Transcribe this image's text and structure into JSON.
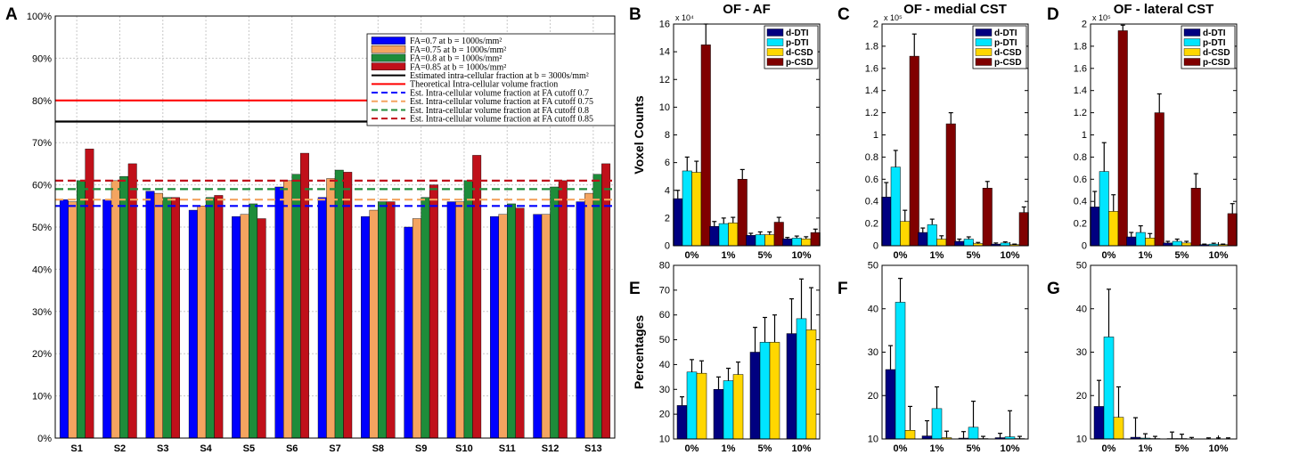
{
  "panels": {
    "A": "A",
    "B": "B",
    "C": "C",
    "D": "D",
    "E": "E",
    "F": "F",
    "G": "G"
  },
  "colors": {
    "fa07": "#0000FF",
    "fa075": "#F4A460",
    "fa08": "#1E8C3A",
    "fa085": "#C0101A",
    "estimated": "#000000",
    "theoretical": "#FF0000",
    "dDTI": "#000080",
    "pDTI": "#00E5FF",
    "dCSD": "#FFD700",
    "pCSD": "#800000"
  },
  "chart_data": [
    {
      "panel": "A",
      "type": "bar",
      "categories": [
        "S1",
        "S2",
        "S3",
        "S4",
        "S5",
        "S6",
        "S7",
        "S8",
        "S9",
        "S10",
        "S11",
        "S12",
        "S13"
      ],
      "yticks": [
        "0%",
        "10%",
        "20%",
        "30%",
        "40%",
        "50%",
        "60%",
        "70%",
        "80%",
        "90%",
        "100%"
      ],
      "ylim": [
        0,
        100
      ],
      "grid": true,
      "series": [
        {
          "name": "FA=0.7 at b = 1000s/mm²",
          "color": "fa07",
          "values": [
            56.5,
            56.5,
            58.5,
            54,
            52.5,
            59.5,
            57,
            52.5,
            50,
            56,
            52.5,
            53,
            56
          ]
        },
        {
          "name": "FA=0.75 at b = 1000s/mm²",
          "color": "fa075",
          "values": [
            56,
            61,
            58,
            55,
            53,
            61,
            61.5,
            54,
            52,
            56,
            53,
            53,
            58
          ]
        },
        {
          "name": "FA=0.8 at b = 1000s/mm²",
          "color": "fa08",
          "values": [
            61,
            62,
            57,
            57,
            55.5,
            62.5,
            63.5,
            56,
            57,
            61,
            55.5,
            59.5,
            62.5
          ]
        },
        {
          "name": "FA=0.85 at b = 1000s/mm²",
          "color": "fa085",
          "values": [
            68.5,
            65,
            57,
            57.5,
            52,
            67.5,
            63,
            56,
            60,
            67,
            54.5,
            61,
            65
          ]
        }
      ],
      "hlines": [
        {
          "name": "Estimated intra-cellular fraction at b = 3000s/mm²",
          "value": 75,
          "color": "estimated",
          "dashed": false
        },
        {
          "name": "Theoretical Intra-cellular volume fraction",
          "value": 80,
          "color": "theoretical",
          "dashed": false
        },
        {
          "name": "Est. Intra-cellular volume fraction at FA cutoff 0.7",
          "value": 55,
          "color": "fa07",
          "dashed": true
        },
        {
          "name": "Est. Intra-cellular volume fraction at FA cutoff 0.75",
          "value": 56.5,
          "color": "fa075",
          "dashed": true
        },
        {
          "name": "Est. Intra-cellular volume fraction at FA cutoff 0.8",
          "value": 59,
          "color": "fa08",
          "dashed": true
        },
        {
          "name": "Est. Intra-cellular volume fraction at FA cutoff 0.85",
          "value": 61,
          "color": "fa085",
          "dashed": true
        }
      ],
      "legend_position": "top-right"
    },
    {
      "panel": "B",
      "type": "bar",
      "title": "OF - AF",
      "ylabel": "Voxel Counts",
      "exponent": "x 10⁴",
      "categories": [
        "0%",
        "1%",
        "5%",
        "10%"
      ],
      "ylim": [
        0,
        16
      ],
      "yticks": [
        "0",
        "2",
        "4",
        "6",
        "8",
        "10",
        "12",
        "14",
        "16"
      ],
      "series": [
        {
          "name": "d-DTI",
          "color": "dDTI",
          "values": [
            3.4,
            1.4,
            0.75,
            0.5
          ],
          "errors": [
            0.6,
            0.35,
            0.15,
            0.1
          ]
        },
        {
          "name": "p-DTI",
          "color": "pDTI",
          "values": [
            5.4,
            1.6,
            0.8,
            0.55
          ],
          "errors": [
            1.0,
            0.4,
            0.2,
            0.15
          ]
        },
        {
          "name": "d-CSD",
          "color": "dCSD",
          "values": [
            5.3,
            1.65,
            0.8,
            0.5
          ],
          "errors": [
            0.8,
            0.4,
            0.2,
            0.15
          ]
        },
        {
          "name": "p-CSD",
          "color": "pCSD",
          "values": [
            14.5,
            4.8,
            1.7,
            0.95
          ],
          "errors": [
            1.5,
            0.7,
            0.35,
            0.25
          ]
        }
      ]
    },
    {
      "panel": "C",
      "type": "bar",
      "title": "OF - medial CST",
      "exponent": "x 10⁵",
      "categories": [
        "0%",
        "1%",
        "5%",
        "10%"
      ],
      "ylim": [
        0,
        2
      ],
      "yticks": [
        "0",
        "0.2",
        "0.4",
        "0.6",
        "0.8",
        "1",
        "1.2",
        "1.4",
        "1.6",
        "1.8",
        "2"
      ],
      "series": [
        {
          "name": "d-DTI",
          "color": "dDTI",
          "values": [
            0.44,
            0.12,
            0.04,
            0.015
          ],
          "errors": [
            0.13,
            0.04,
            0.02,
            0.01
          ]
        },
        {
          "name": "p-DTI",
          "color": "pDTI",
          "values": [
            0.71,
            0.19,
            0.06,
            0.025
          ],
          "errors": [
            0.15,
            0.05,
            0.02,
            0.01
          ]
        },
        {
          "name": "d-CSD",
          "color": "dCSD",
          "values": [
            0.22,
            0.06,
            0.02,
            0.01
          ],
          "errors": [
            0.1,
            0.03,
            0.01,
            0.005
          ]
        },
        {
          "name": "p-CSD",
          "color": "pCSD",
          "values": [
            1.71,
            1.1,
            0.52,
            0.3
          ],
          "errors": [
            0.2,
            0.1,
            0.06,
            0.05
          ]
        }
      ]
    },
    {
      "panel": "D",
      "type": "bar",
      "title": "OF - lateral CST",
      "exponent": "x 10⁵",
      "categories": [
        "0%",
        "1%",
        "5%",
        "10%"
      ],
      "ylim": [
        0,
        2
      ],
      "yticks": [
        "0",
        "0.2",
        "0.4",
        "0.6",
        "0.8",
        "1",
        "1.2",
        "1.4",
        "1.6",
        "1.8",
        "2"
      ],
      "series": [
        {
          "name": "d-DTI",
          "color": "dDTI",
          "values": [
            0.35,
            0.08,
            0.025,
            0.01
          ],
          "errors": [
            0.14,
            0.04,
            0.015,
            0.005
          ]
        },
        {
          "name": "p-DTI",
          "color": "pDTI",
          "values": [
            0.67,
            0.12,
            0.04,
            0.015
          ],
          "errors": [
            0.26,
            0.06,
            0.02,
            0.008
          ]
        },
        {
          "name": "d-CSD",
          "color": "dCSD",
          "values": [
            0.31,
            0.07,
            0.025,
            0.01
          ],
          "errors": [
            0.15,
            0.04,
            0.015,
            0.005
          ]
        },
        {
          "name": "p-CSD",
          "color": "pCSD",
          "values": [
            1.94,
            1.2,
            0.52,
            0.29
          ],
          "errors": [
            0.05,
            0.17,
            0.13,
            0.09
          ]
        }
      ]
    },
    {
      "panel": "E",
      "type": "bar",
      "ylabel": "Percentages",
      "categories": [
        "0%",
        "1%",
        "5%",
        "10%"
      ],
      "ylim": [
        10,
        80
      ],
      "yticks": [
        "10",
        "20",
        "30",
        "40",
        "50",
        "60",
        "70",
        "80"
      ],
      "series": [
        {
          "name": "d-DTI",
          "color": "dDTI",
          "values": [
            23.5,
            30,
            45,
            52.5
          ],
          "errors": [
            3.5,
            5,
            10,
            14
          ]
        },
        {
          "name": "p-DTI",
          "color": "pDTI",
          "values": [
            37,
            33.5,
            49,
            58.5
          ],
          "errors": [
            5,
            5,
            10,
            16
          ]
        },
        {
          "name": "d-CSD",
          "color": "dCSD",
          "values": [
            36.5,
            36,
            49,
            54
          ],
          "errors": [
            5,
            5,
            11,
            17
          ]
        }
      ]
    },
    {
      "panel": "F",
      "type": "bar",
      "categories": [
        "0%",
        "1%",
        "5%",
        "10%"
      ],
      "ylim": [
        10,
        50
      ],
      "yticks": [
        "10",
        "20",
        "30",
        "40",
        "50"
      ],
      "series": [
        {
          "name": "d-DTI",
          "color": "dDTI",
          "values": [
            26,
            10.7,
            10.2,
            10.3
          ],
          "errors": [
            5.5,
            3.5,
            1.5,
            1
          ]
        },
        {
          "name": "p-DTI",
          "color": "pDTI",
          "values": [
            41.5,
            17,
            12.7,
            10.5
          ],
          "errors": [
            5.5,
            5,
            6,
            6
          ]
        },
        {
          "name": "d-CSD",
          "color": "dCSD",
          "values": [
            12,
            10.3,
            10.1,
            10.1
          ],
          "errors": [
            5.5,
            1.5,
            0.5,
            0.5
          ]
        }
      ]
    },
    {
      "panel": "G",
      "type": "bar",
      "categories": [
        "0%",
        "1%",
        "5%",
        "10%"
      ],
      "ylim": [
        10,
        50
      ],
      "yticks": [
        "10",
        "20",
        "30",
        "40",
        "50"
      ],
      "series": [
        {
          "name": "d-DTI",
          "color": "dDTI",
          "values": [
            17.5,
            10.4,
            10.1,
            10.05
          ],
          "errors": [
            6,
            4.5,
            1.5,
            0.2
          ]
        },
        {
          "name": "p-DTI",
          "color": "pDTI",
          "values": [
            33.5,
            10.2,
            10.1,
            10.05
          ],
          "errors": [
            11,
            1,
            1,
            0.2
          ]
        },
        {
          "name": "d-CSD",
          "color": "dCSD",
          "values": [
            15,
            10.1,
            10.05,
            10.05
          ],
          "errors": [
            7,
            0.5,
            0.3,
            0.2
          ]
        }
      ]
    }
  ]
}
